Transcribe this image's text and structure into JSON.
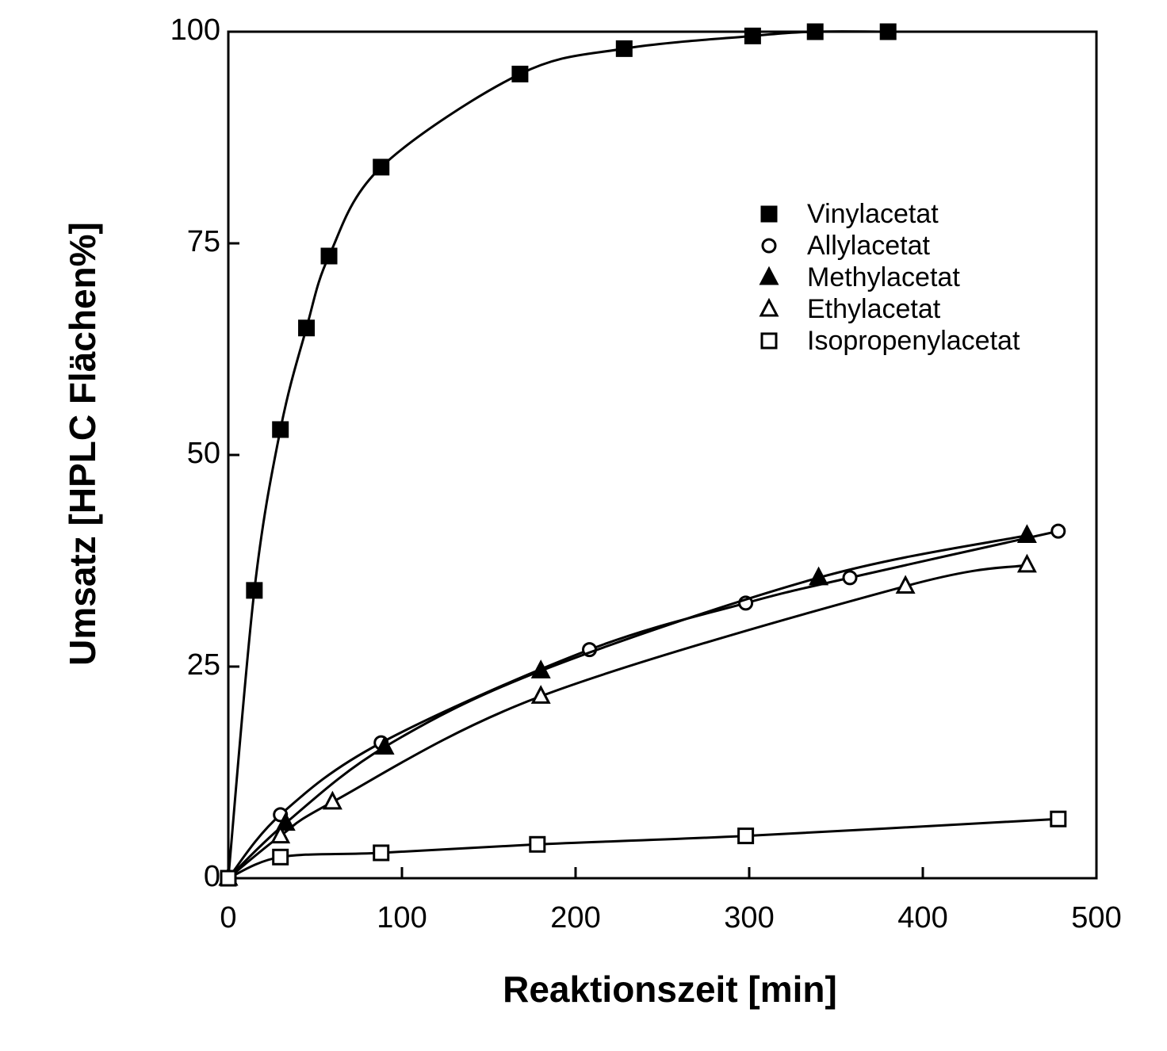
{
  "chart_data": {
    "type": "line",
    "x_label": "Reaktionszeit  [min]",
    "y_label": "Umsatz [HPLC Flächen%]",
    "xlim": [
      0,
      500
    ],
    "xticks": [
      0,
      100,
      200,
      300,
      400,
      500
    ],
    "ylim": [
      0,
      100
    ],
    "yticks": [
      0,
      25,
      50,
      75,
      100
    ],
    "series": [
      {
        "name": "Vinylacetat",
        "color": "#000000",
        "marker": "square",
        "filled": true,
        "x": [
          0,
          15,
          30,
          45,
          58,
          88,
          168,
          228,
          302,
          338,
          380
        ],
        "values": [
          0,
          34,
          53,
          65,
          73.5,
          84,
          95,
          98,
          99.5,
          100,
          100
        ]
      },
      {
        "name": "Allylacetat",
        "color": "#000000",
        "marker": "circle",
        "filled": false,
        "x": [
          0,
          30,
          88,
          208,
          298,
          358,
          478
        ],
        "values": [
          0,
          7.5,
          16,
          27,
          32.5,
          35.5,
          41
        ]
      },
      {
        "name": "Methylacetat",
        "color": "#000000",
        "marker": "triangle",
        "filled": true,
        "x": [
          0,
          33,
          90,
          180,
          340,
          460
        ],
        "values": [
          0,
          6.5,
          15.5,
          24.5,
          35.5,
          40.5
        ]
      },
      {
        "name": "Ethylacetat",
        "color": "#000000",
        "marker": "triangle",
        "filled": false,
        "x": [
          0,
          30,
          60,
          180,
          390,
          460
        ],
        "values": [
          0,
          5,
          9,
          21.5,
          34.5,
          37
        ]
      },
      {
        "name": "Isopropenylacetat",
        "color": "#000000",
        "marker": "square",
        "filled": false,
        "x": [
          0,
          30,
          88,
          178,
          298,
          478
        ],
        "values": [
          0,
          2.5,
          3,
          4,
          5,
          7
        ]
      }
    ]
  }
}
